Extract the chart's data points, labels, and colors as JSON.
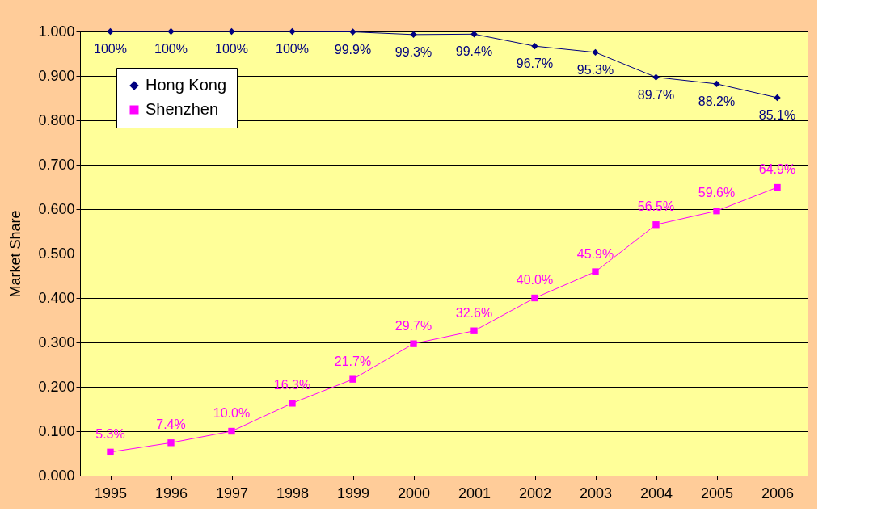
{
  "chart_data": {
    "type": "line",
    "ylabel": "Market Share",
    "categories": [
      "1995",
      "1996",
      "1997",
      "1998",
      "1999",
      "2000",
      "2001",
      "2002",
      "2003",
      "2004",
      "2005",
      "2006"
    ],
    "ylim": [
      0,
      1
    ],
    "yticks": [
      {
        "value": 0,
        "label": "0.000"
      },
      {
        "value": 0.1,
        "label": "0.100"
      },
      {
        "value": 0.2,
        "label": "0.200"
      },
      {
        "value": 0.3,
        "label": "0.300"
      },
      {
        "value": 0.4,
        "label": "0.400"
      },
      {
        "value": 0.5,
        "label": "0.500"
      },
      {
        "value": 0.6,
        "label": "0.600"
      },
      {
        "value": 0.7,
        "label": "0.700"
      },
      {
        "value": 0.8,
        "label": "0.800"
      },
      {
        "value": 0.9,
        "label": "0.900"
      },
      {
        "value": 1,
        "label": "1.000"
      }
    ],
    "grid": "y",
    "legend": "top left",
    "line_style": "solid",
    "series": [
      {
        "name": "Hong Kong",
        "color": "#000080",
        "marker": "diamond",
        "values": [
          1.0,
          1.0,
          1.0,
          1.0,
          0.999,
          0.993,
          0.994,
          0.967,
          0.953,
          0.897,
          0.882,
          0.851
        ],
        "value_labels": [
          "100%",
          "100%",
          "100%",
          "100%",
          "99.9%",
          "99.3%",
          "99.4%",
          "96.7%",
          "95.3%",
          "89.7%",
          "88.2%",
          "85.1%"
        ]
      },
      {
        "name": "Shenzhen",
        "color": "#ff00ff",
        "marker": "square",
        "values": [
          0.053,
          0.074,
          0.1,
          0.163,
          0.217,
          0.297,
          0.326,
          0.4,
          0.459,
          0.565,
          0.596,
          0.649
        ],
        "value_labels": [
          "5.3%",
          "7.4%",
          "10.0%",
          "16.3%",
          "21.7%",
          "29.7%",
          "32.6%",
          "40.0%",
          "45.9%",
          "56.5%",
          "59.6%",
          "64.9%"
        ]
      }
    ]
  }
}
